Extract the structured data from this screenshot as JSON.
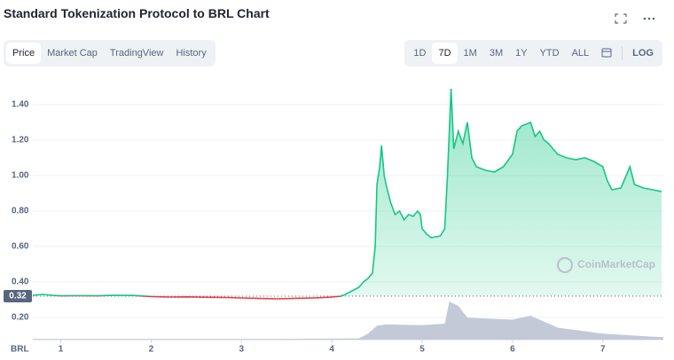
{
  "chart_data": {
    "type": "line",
    "title": "Standard Tokenization Protocol to BRL Chart",
    "axis_unit_label": "BRL",
    "xlim": [
      0.69,
      7.67
    ],
    "xticks": [
      1,
      2,
      3,
      4,
      5,
      6,
      7
    ],
    "ylim": [
      0.075,
      1.515
    ],
    "yticks": [
      {
        "value": 0.2,
        "label": "0.20"
      },
      {
        "value": 0.4,
        "label": "0.40"
      },
      {
        "value": 0.6,
        "label": "0.60"
      },
      {
        "value": 0.8,
        "label": "0.80"
      },
      {
        "value": 1.0,
        "label": "1.00"
      },
      {
        "value": 1.2,
        "label": "1.20"
      },
      {
        "value": 1.4,
        "label": "1.40"
      }
    ],
    "grid": true,
    "baseline": {
      "value": 0.32,
      "label": "0.32"
    },
    "up_color": "#16c784",
    "down_color": "#ea3943",
    "series": [
      {
        "x": [
          0.69,
          0.8,
          0.9,
          1.0,
          1.2,
          1.4,
          1.6,
          1.8,
          2.0,
          2.2,
          2.4,
          2.6,
          2.8,
          3.0,
          3.2,
          3.4,
          3.6,
          3.8,
          3.9,
          4.0,
          4.1,
          4.15,
          4.3,
          4.35,
          4.4,
          4.45,
          4.48,
          4.5,
          4.53,
          4.55,
          4.58,
          4.6,
          4.65,
          4.7,
          4.75,
          4.8,
          4.85,
          4.9,
          4.95,
          4.98,
          5.0,
          5.05,
          5.1,
          5.2,
          5.25,
          5.28,
          5.32,
          5.35,
          5.4,
          5.45,
          5.5,
          5.55,
          5.6,
          5.7,
          5.8,
          5.9,
          6.0,
          6.05,
          6.1,
          6.2,
          6.25,
          6.3,
          6.35,
          6.4,
          6.5,
          6.6,
          6.7,
          6.8,
          6.9,
          7.0,
          7.05,
          7.1,
          7.2,
          7.3,
          7.35,
          7.45,
          7.55,
          7.65
        ],
        "values": [
          0.325,
          0.33,
          0.325,
          0.322,
          0.323,
          0.322,
          0.325,
          0.324,
          0.318,
          0.315,
          0.316,
          0.314,
          0.313,
          0.31,
          0.307,
          0.305,
          0.308,
          0.31,
          0.312,
          0.315,
          0.32,
          0.33,
          0.37,
          0.4,
          0.42,
          0.45,
          0.6,
          0.95,
          1.05,
          1.17,
          1.0,
          0.95,
          0.85,
          0.78,
          0.8,
          0.75,
          0.78,
          0.77,
          0.8,
          0.78,
          0.7,
          0.67,
          0.65,
          0.66,
          0.7,
          1.0,
          1.49,
          1.15,
          1.25,
          1.18,
          1.3,
          1.1,
          1.05,
          1.03,
          1.02,
          1.05,
          1.12,
          1.25,
          1.28,
          1.3,
          1.22,
          1.25,
          1.2,
          1.18,
          1.12,
          1.1,
          1.09,
          1.1,
          1.08,
          1.05,
          0.97,
          0.92,
          0.93,
          1.05,
          0.95,
          0.93,
          0.92,
          0.91
        ]
      }
    ],
    "volume": {
      "color": "#c4c9d8",
      "ylim": [
        0,
        1
      ],
      "x": [
        0.69,
        1.5,
        2.5,
        3.5,
        4.3,
        4.4,
        4.5,
        4.6,
        5.0,
        5.25,
        5.3,
        5.4,
        5.5,
        6.0,
        6.2,
        6.3,
        6.5,
        7.0,
        7.5,
        7.67
      ],
      "values": [
        0.02,
        0.02,
        0.02,
        0.02,
        0.03,
        0.15,
        0.35,
        0.38,
        0.36,
        0.4,
        0.95,
        0.85,
        0.55,
        0.5,
        0.6,
        0.5,
        0.3,
        0.15,
        0.08,
        0.06
      ]
    }
  },
  "ui": {
    "tabs": [
      "Price",
      "Market Cap",
      "TradingView",
      "History"
    ],
    "ranges": [
      "1D",
      "7D",
      "1M",
      "3M",
      "1Y",
      "YTD",
      "ALL"
    ],
    "log_label": "LOG",
    "watermark": "CoinMarketCap"
  }
}
